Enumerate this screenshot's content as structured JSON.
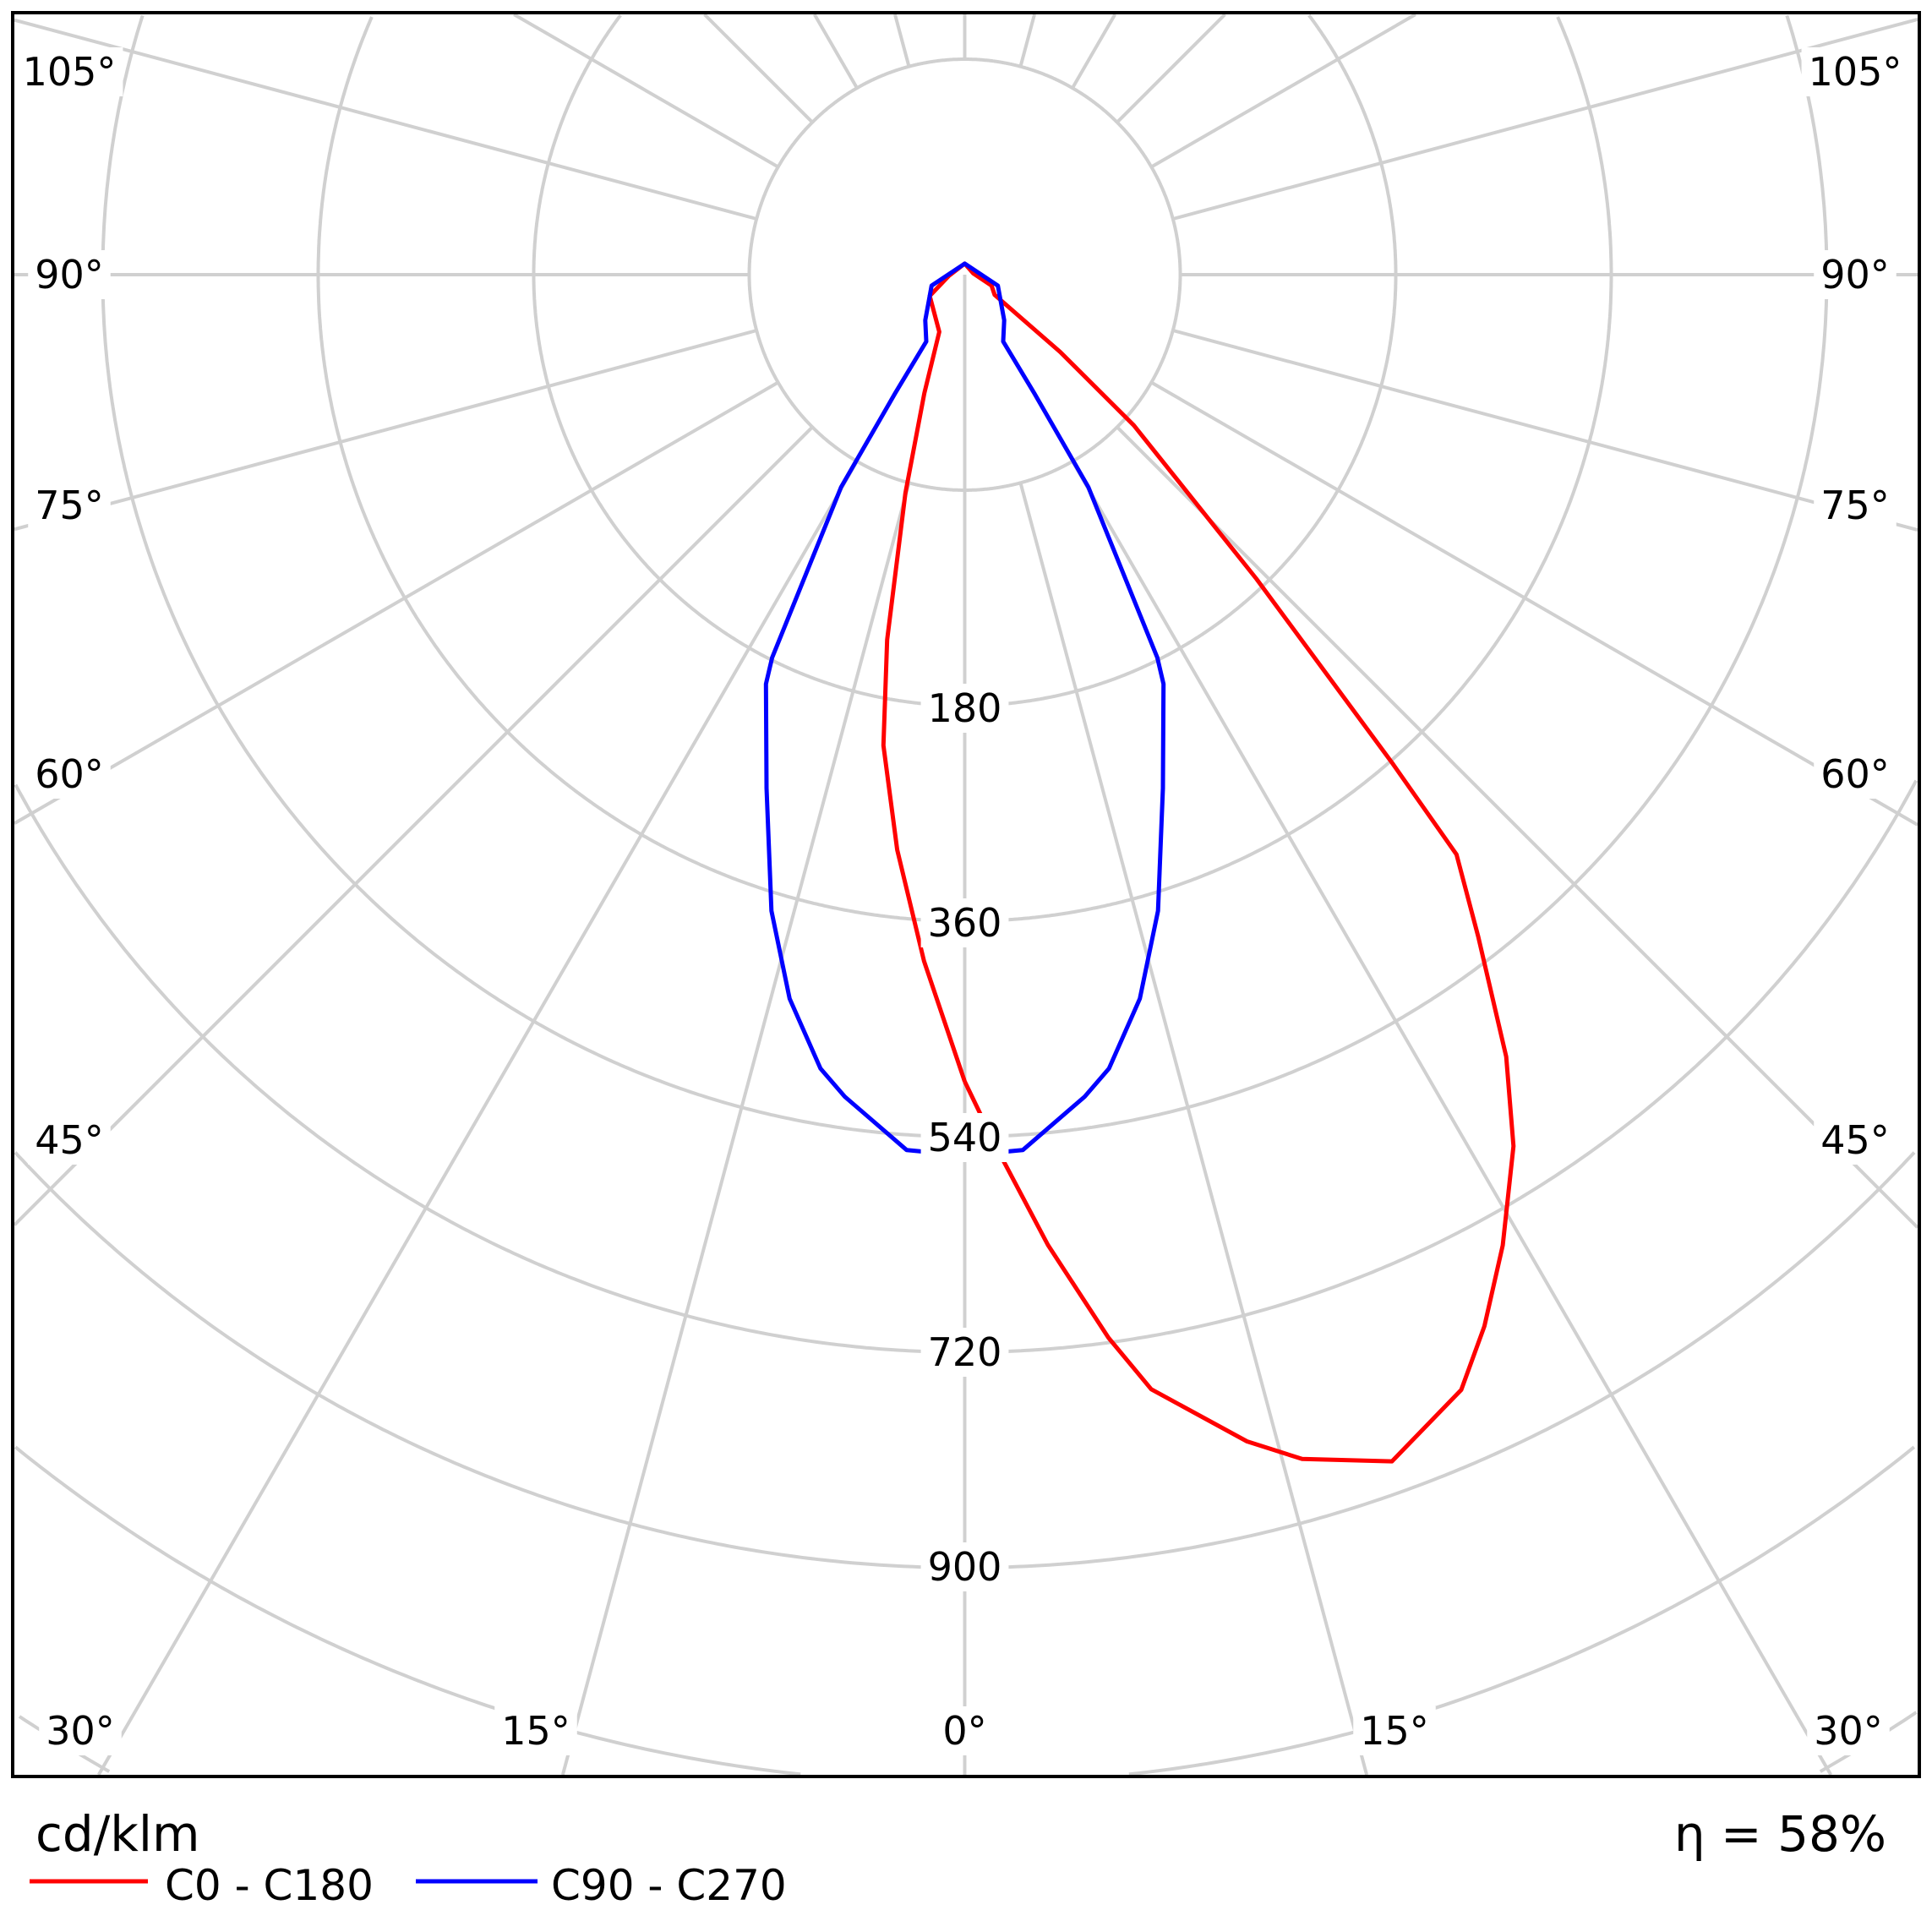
{
  "chart_data": {
    "type": "polar",
    "unit_label": "cd/klm",
    "efficiency_label": "η = 58%",
    "radial_ticks": [
      "180",
      "360",
      "540",
      "720",
      "900"
    ],
    "angle_labels": {
      "left": [
        "105°",
        "90°",
        "75°",
        "60°",
        "45°"
      ],
      "right": [
        "105°",
        "90°",
        "75°",
        "60°",
        "45°"
      ],
      "bottom": [
        "30°",
        "15°",
        "0°",
        "15°",
        "30°"
      ]
    },
    "angle_grid_step_deg": 15,
    "grid": true,
    "grid_color": "#d0d0d0",
    "legend_placement": "bottom-left",
    "series": [
      {
        "name": "C0 - C180",
        "color": "#ff0000",
        "right_plane_C0": [
          [
            0,
            493
          ],
          [
            2.2,
            552
          ],
          [
            4.9,
            633
          ],
          [
            7.7,
            716
          ],
          [
            9.5,
            764
          ],
          [
            13.6,
            823
          ],
          [
            15.9,
            849
          ],
          [
            19.8,
            874
          ],
          [
            24,
            840
          ],
          [
            26.3,
            800
          ],
          [
            29,
            747
          ],
          [
            32.2,
            680
          ],
          [
            34.7,
            614
          ],
          [
            37.8,
            519
          ],
          [
            40.3,
            454
          ],
          [
            41.2,
            361
          ],
          [
            43.8,
            175
          ],
          [
            48.3,
            94
          ],
          [
            51,
            51
          ],
          [
            56,
            15
          ],
          [
            67.8,
            12
          ],
          [
            98,
            3.6
          ],
          [
            180,
            4.6
          ]
        ],
        "left_plane_C180": [
          [
            0,
            493
          ],
          [
            3.4,
            393
          ],
          [
            6.7,
            302
          ],
          [
            9.8,
            217
          ],
          [
            12,
            155
          ],
          [
            15.2,
            94
          ],
          [
            18.8,
            52
          ],
          [
            24,
            26
          ],
          [
            58.7,
            17
          ],
          [
            85.6,
            6.6
          ],
          [
            180,
            4.6
          ]
        ]
      },
      {
        "name": "C90 - C270",
        "color": "#0000ff",
        "right_plane_C90": [
          [
            0,
            555
          ],
          [
            3.8,
            552
          ],
          [
            8.3,
            513
          ],
          [
            10.3,
            493
          ],
          [
            13.6,
            441
          ],
          [
            16.9,
            374
          ],
          [
            21.1,
            278
          ],
          [
            25.9,
            198
          ],
          [
            26.7,
            178
          ],
          [
            30.2,
            102
          ],
          [
            30.4,
            57
          ],
          [
            29.9,
            32
          ],
          [
            40.9,
            25
          ],
          [
            71.6,
            14.5
          ],
          [
            180,
            4.6
          ]
        ],
        "left_plane_C270": [
          [
            0,
            555
          ],
          [
            3.8,
            552
          ],
          [
            8.3,
            513
          ],
          [
            10.3,
            493
          ],
          [
            13.6,
            441
          ],
          [
            16.9,
            374
          ],
          [
            21.1,
            278
          ],
          [
            25.9,
            198
          ],
          [
            26.7,
            178
          ],
          [
            30.2,
            102
          ],
          [
            30.4,
            57
          ],
          [
            29.9,
            32
          ],
          [
            40.9,
            25
          ],
          [
            71.6,
            14.5
          ],
          [
            180,
            4.6
          ]
        ]
      }
    ]
  }
}
